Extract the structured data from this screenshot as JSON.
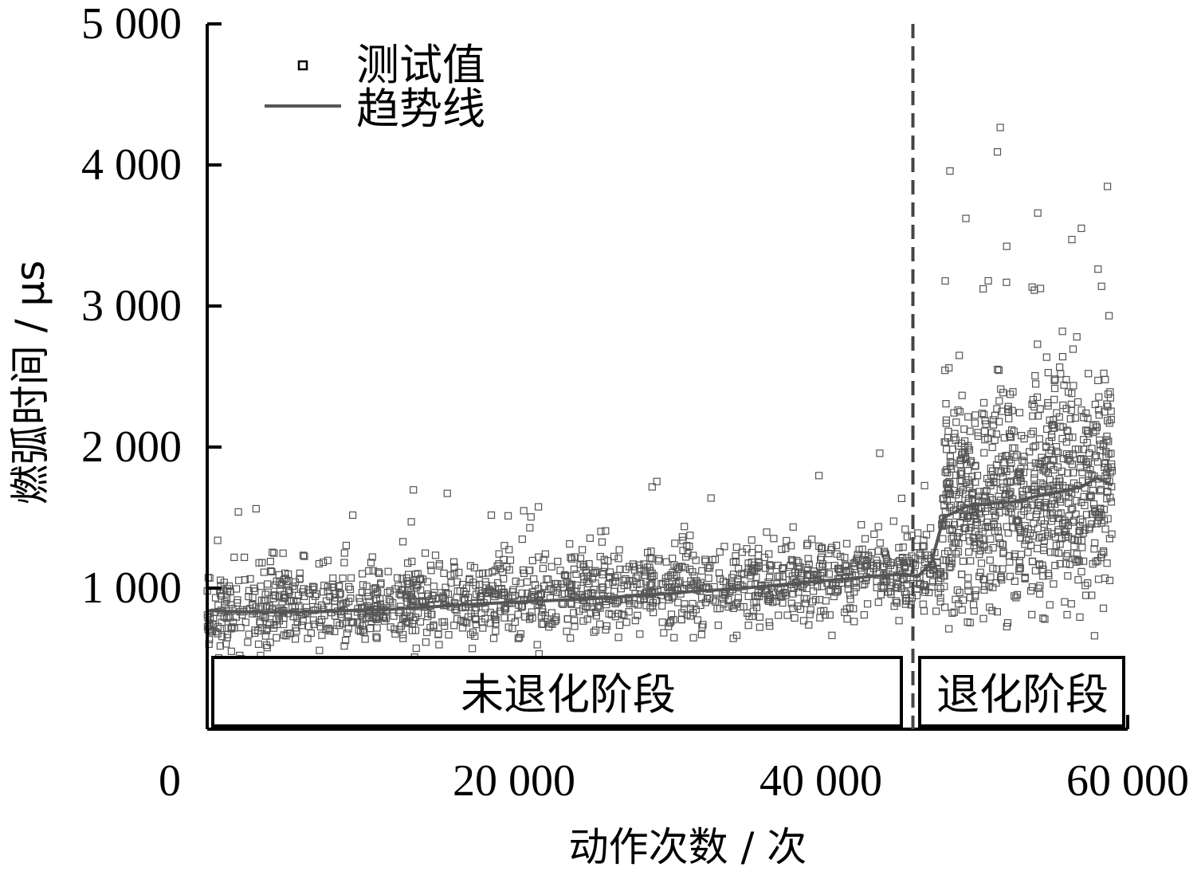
{
  "chart_data": {
    "type": "scatter",
    "xlabel": "动作次数 / 次",
    "ylabel": "燃弧时间 / μs",
    "xlim": [
      0,
      60000
    ],
    "ylim": [
      0,
      5000
    ],
    "x_ticks": [
      0,
      20000,
      40000,
      60000
    ],
    "x_tick_labels": [
      "0",
      "20 000",
      "40 000",
      "60 000"
    ],
    "y_ticks": [
      1000,
      2000,
      3000,
      4000,
      5000
    ],
    "y_tick_labels": [
      "1 000",
      "2 000",
      "3 000",
      "4 000",
      "5 000"
    ],
    "grid": false,
    "legend": {
      "position": "top-left"
    },
    "series": [
      {
        "name": "测试值",
        "marker": "square-open",
        "color": "#555555",
        "segments": [
          {
            "x_range": [
              0,
              46000
            ],
            "baseline_start": 830,
            "baseline_end": 1090,
            "spread": 150
          },
          {
            "x_range": [
              46000,
              47800
            ],
            "baseline_start": 1080,
            "baseline_end": 1100,
            "spread": 140
          },
          {
            "x_range": [
              47800,
              59000
            ],
            "baseline_start": 1550,
            "baseline_end": 1750,
            "spread": 380
          }
        ]
      },
      {
        "name": "趋势线",
        "type": "line",
        "color": "#555555",
        "x": [
          0,
          3000,
          6000,
          9000,
          12000,
          15000,
          18000,
          20000,
          22000,
          24000,
          26000,
          28000,
          30000,
          32000,
          34000,
          36000,
          38000,
          40000,
          42000,
          44000,
          45500,
          46300,
          47200,
          48000,
          49500,
          51000,
          52500,
          54000,
          55500,
          57000,
          58000,
          59000
        ],
        "y": [
          840,
          830,
          830,
          840,
          850,
          870,
          890,
          900,
          910,
          920,
          930,
          950,
          960,
          980,
          990,
          1010,
          1030,
          1050,
          1070,
          1090,
          1100,
          1080,
          1180,
          1500,
          1580,
          1600,
          1610,
          1650,
          1680,
          1720,
          1780,
          1730
        ]
      }
    ],
    "annotations": {
      "boundary_x": 46000,
      "stages": [
        {
          "label": "未退化阶段",
          "x_range": [
            0,
            45000
          ]
        },
        {
          "label": "退化阶段",
          "x_range": [
            46500,
            60000
          ]
        }
      ]
    }
  }
}
